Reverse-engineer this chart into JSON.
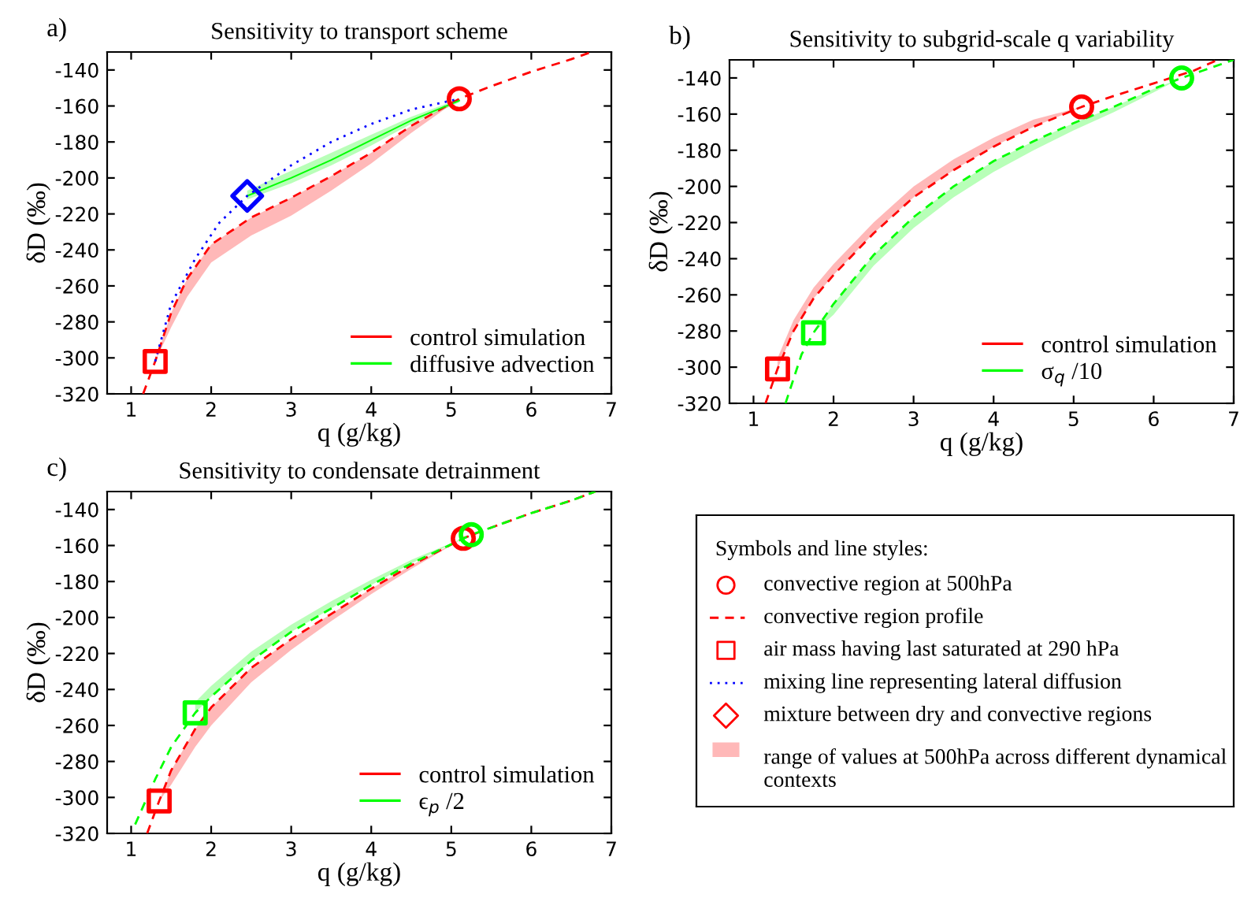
{
  "chart_data": [
    {
      "type": "line",
      "title": "Sensitivity to transport scheme",
      "annotations": [
        "a)"
      ],
      "xlabel": "q (g/kg)",
      "ylabel": "δD (‰)",
      "xlim": [
        0.7,
        7
      ],
      "ylim": [
        -320,
        -130
      ],
      "xticks": [
        1,
        2,
        3,
        4,
        5,
        6,
        7
      ],
      "yticks": [
        -320,
        -300,
        -280,
        -260,
        -240,
        -220,
        -200,
        -180,
        -160,
        -140
      ],
      "grid": false,
      "legend": "bottom right",
      "series": [
        {
          "type": "line",
          "name": "control simulation",
          "color": "#ff0000",
          "line_style": "dashed",
          "x": [
            1.15,
            1.3,
            1.5,
            1.7,
            2,
            2.5,
            3,
            3.5,
            4,
            4.5,
            5.1,
            5.5,
            6,
            6.5,
            6.75
          ],
          "values": [
            -320,
            -302,
            -275,
            -256,
            -237,
            -222,
            -211,
            -199,
            -186,
            -171,
            -156,
            -149,
            -141,
            -134,
            -130
          ],
          "upper": [
            null,
            -302,
            -275,
            -256,
            -237,
            -222,
            -211,
            -199,
            -186,
            -171,
            -156,
            null,
            null,
            null,
            null
          ],
          "lower": [
            null,
            -302,
            -283,
            -266,
            -247,
            -232,
            -221,
            -207,
            -192,
            -175,
            -156,
            null,
            null,
            null,
            null
          ]
        },
        {
          "type": "line",
          "name": "diffusive advection",
          "color": "#00ff00",
          "line_style": "solid",
          "x": [
            2.45,
            3,
            3.5,
            4,
            4.5,
            5.1
          ],
          "values": [
            -210,
            -200,
            -190,
            -179,
            -168,
            -157
          ],
          "upper": [
            -207,
            -196,
            -186,
            -176,
            -166,
            -156
          ],
          "lower": [
            -212,
            -203,
            -193,
            -182,
            -170,
            -158
          ]
        },
        {
          "type": "line",
          "color": "#0000ff",
          "line_style": "dotted",
          "x": [
            1.3,
            1.5,
            1.8,
            2.1,
            2.45,
            3,
            3.5,
            4,
            4.5,
            5.1
          ],
          "values": [
            -302,
            -270,
            -245,
            -225,
            -210,
            -193,
            -180,
            -170,
            -162,
            -156
          ]
        },
        {
          "type": "scatter",
          "color": "#ff0000",
          "marker": "square",
          "x": [
            1.3
          ],
          "values": [
            -302
          ]
        },
        {
          "type": "scatter",
          "color": "#ff0000",
          "marker": "circle",
          "x": [
            5.1
          ],
          "values": [
            -156
          ]
        },
        {
          "type": "scatter",
          "color": "#0000ff",
          "marker": "diamond",
          "x": [
            2.45
          ],
          "values": [
            -210
          ]
        }
      ]
    },
    {
      "type": "line",
      "title": "Sensitivity to subgrid-scale q variability",
      "annotations": [
        "b)"
      ],
      "xlabel": "q (g/kg)",
      "ylabel": "δD (‰)",
      "xlim": [
        0.7,
        7
      ],
      "ylim": [
        -320,
        -130
      ],
      "xticks": [
        1,
        2,
        3,
        4,
        5,
        6,
        7
      ],
      "yticks": [
        -320,
        -300,
        -280,
        -260,
        -240,
        -220,
        -200,
        -180,
        -160,
        -140
      ],
      "grid": false,
      "legend": "bottom right",
      "series": [
        {
          "type": "line",
          "name": "control simulation",
          "color": "#ff0000",
          "line_style": "dashed",
          "x": [
            1.15,
            1.3,
            1.5,
            1.75,
            2,
            2.5,
            3,
            3.5,
            4,
            4.5,
            5.1,
            5.5,
            6,
            6.5,
            6.8
          ],
          "values": [
            -320,
            -301,
            -280,
            -262,
            -249,
            -226,
            -206,
            -191,
            -178,
            -167,
            -156,
            -150,
            -143,
            -136,
            -130
          ],
          "upper": [
            null,
            -295,
            -274,
            -256,
            -243,
            -220,
            -200,
            -185,
            -173,
            -163,
            -156,
            null,
            null,
            null,
            null
          ],
          "lower": [
            null,
            -301,
            -280,
            -262,
            -249,
            -226,
            -206,
            -191,
            -178,
            -167,
            -156,
            null,
            null,
            null,
            null
          ]
        },
        {
          "type": "line",
          "name": "σ$_{q}$ /10",
          "color": "#00ff00",
          "line_style": "dashed",
          "x": [
            1.4,
            1.6,
            1.75,
            2,
            2.5,
            3,
            3.5,
            4,
            4.5,
            5,
            5.5,
            6,
            6.35,
            7
          ],
          "values": [
            -320,
            -293,
            -281,
            -265,
            -238,
            -217,
            -200,
            -186,
            -175,
            -165,
            -156,
            -146,
            -140,
            -130
          ],
          "upper": [
            null,
            null,
            -281,
            -265,
            -238,
            -217,
            -200,
            -186,
            -175,
            -165,
            -156,
            -146,
            -140,
            null
          ],
          "lower": [
            null,
            null,
            -281,
            -271,
            -244,
            -223,
            -206,
            -192,
            -180,
            -169,
            -159,
            -148,
            -140,
            null
          ]
        },
        {
          "type": "scatter",
          "color": "#ff0000",
          "marker": "square",
          "x": [
            1.3
          ],
          "values": [
            -301
          ]
        },
        {
          "type": "scatter",
          "color": "#ff0000",
          "marker": "circle",
          "x": [
            5.1
          ],
          "values": [
            -156
          ]
        },
        {
          "type": "scatter",
          "color": "#00ff00",
          "marker": "square",
          "x": [
            1.75
          ],
          "values": [
            -281
          ]
        },
        {
          "type": "scatter",
          "color": "#00ff00",
          "marker": "circle",
          "x": [
            6.35
          ],
          "values": [
            -140
          ]
        }
      ]
    },
    {
      "type": "line",
      "title": "Sensitivity to condensate detrainment",
      "annotations": [
        "c)"
      ],
      "xlabel": "q (g/kg)",
      "ylabel": "δD (‰)",
      "xlim": [
        0.7,
        7
      ],
      "ylim": [
        -320,
        -130
      ],
      "xticks": [
        1,
        2,
        3,
        4,
        5,
        6,
        7
      ],
      "yticks": [
        -320,
        -300,
        -280,
        -260,
        -240,
        -220,
        -200,
        -180,
        -160,
        -140
      ],
      "grid": false,
      "legend": "bottom right",
      "series": [
        {
          "type": "line",
          "name": "control simulation",
          "color": "#ff0000",
          "line_style": "dashed",
          "x": [
            1.2,
            1.35,
            1.5,
            1.8,
            2,
            2.5,
            3,
            3.5,
            4,
            4.5,
            5.15,
            5.5,
            6,
            6.5,
            6.8
          ],
          "values": [
            -320,
            -302,
            -285,
            -262,
            -250,
            -228,
            -212,
            -198,
            -184,
            -171,
            -156,
            -150,
            -142,
            -135,
            -130
          ],
          "upper": [
            null,
            -302,
            -285,
            -262,
            -250,
            -228,
            -212,
            -198,
            -184,
            -171,
            -156,
            null,
            null,
            null,
            null
          ],
          "lower": [
            null,
            -302,
            -293,
            -272,
            -260,
            -236,
            -218,
            -202,
            -187,
            -173,
            -156,
            null,
            null,
            null,
            null
          ]
        },
        {
          "type": "line",
          "name": "ϵ$_{p}$ /2",
          "color": "#00ff00",
          "line_style": "dashed",
          "x": [
            1.05,
            1.3,
            1.5,
            1.8,
            2,
            2.5,
            3,
            3.5,
            4,
            4.5,
            5.25,
            5.5,
            6,
            6.5,
            6.8
          ],
          "values": [
            -315,
            -290,
            -272,
            -253,
            -244,
            -224,
            -208,
            -195,
            -182,
            -170,
            -154,
            -150,
            -142,
            -135,
            -130
          ],
          "upper": [
            null,
            null,
            null,
            -247,
            -238,
            -219,
            -204,
            -191,
            -179,
            -168,
            -154,
            null,
            null,
            null,
            null
          ],
          "lower": [
            null,
            null,
            null,
            -253,
            -244,
            -224,
            -208,
            -195,
            -182,
            -170,
            -154,
            null,
            null,
            null,
            null
          ]
        },
        {
          "type": "scatter",
          "color": "#ff0000",
          "marker": "square",
          "x": [
            1.35
          ],
          "values": [
            -302
          ]
        },
        {
          "type": "scatter",
          "color": "#ff0000",
          "marker": "circle",
          "x": [
            5.15
          ],
          "values": [
            -156
          ]
        },
        {
          "type": "scatter",
          "color": "#00ff00",
          "marker": "square",
          "x": [
            1.8
          ],
          "values": [
            -253
          ]
        },
        {
          "type": "scatter",
          "color": "#00ff00",
          "marker": "circle",
          "x": [
            5.25
          ],
          "values": [
            -154
          ]
        }
      ]
    },
    {
      "type": "other",
      "title": "Symbols and line styles:",
      "series": [
        {
          "name": "convective region at 500hPa",
          "type": "scatter",
          "marker": "circle",
          "color": "#ff0000"
        },
        {
          "name": "convective region profile",
          "type": "line",
          "line_style": "dashed",
          "color": "#ff0000"
        },
        {
          "name": "air mass having last saturated at 290 hPa",
          "type": "scatter",
          "marker": "square",
          "color": "#ff0000"
        },
        {
          "name": "mixing line representing lateral diffusion",
          "type": "line",
          "line_style": "dotted",
          "color": "#0000ff"
        },
        {
          "name": "mixture between dry and convective regions",
          "type": "scatter",
          "marker": "diamond",
          "color": "#ff0000"
        },
        {
          "name": "range of values at 500hPa across different dynamical contexts",
          "type": "area",
          "color": "#ff0000"
        }
      ]
    }
  ]
}
